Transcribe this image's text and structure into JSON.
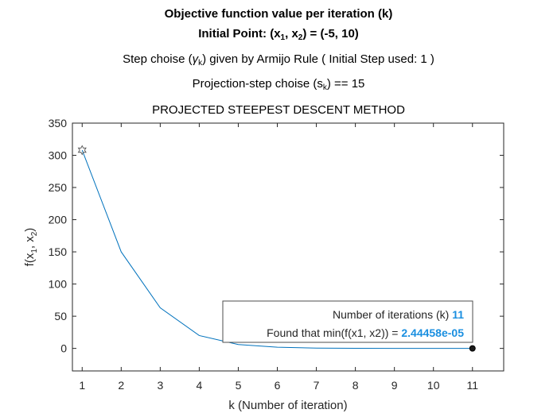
{
  "titles": {
    "line1": "Objective function value per iteration (k)",
    "line2_pre": "Initial Point: (x",
    "line2_sub1": "1",
    "line2_mid": ", x",
    "line2_sub2": "2",
    "line2_post": ") = (-5, 10)",
    "line3_pre": "Step choise (",
    "line3_gamma": "γ",
    "line3_sub": "k",
    "line3_post": ") given by Armijo Rule ( Initial Step used: 1 )",
    "line4_pre": "Projection-step choise (s",
    "line4_sub": "k",
    "line4_post": ") == 15",
    "axes_title": "PROJECTED STEEPEST DESCENT METHOD"
  },
  "chart_data": {
    "type": "line",
    "title": "PROJECTED STEEPEST DESCENT METHOD",
    "xlabel": "k (Number of iteration)",
    "ylabel_pre": "f(x",
    "ylabel_sub1": "1",
    "ylabel_mid": ", x",
    "ylabel_sub2": "2",
    "ylabel_post": ")",
    "xlim": [
      0.75,
      11.8
    ],
    "ylim": [
      -35,
      350
    ],
    "xticks": [
      1,
      2,
      3,
      4,
      5,
      6,
      7,
      8,
      9,
      10,
      11
    ],
    "yticks": [
      0,
      50,
      100,
      150,
      200,
      250,
      300,
      350
    ],
    "grid": false,
    "series": [
      {
        "color": "#0072bd",
        "x": [
          1,
          2,
          3,
          4,
          5,
          6,
          7,
          8,
          9,
          10,
          11
        ],
        "y": [
          308,
          150,
          63,
          20,
          6,
          1.8,
          0.5,
          0.15,
          0.04,
          0.01,
          2.44458e-05
        ]
      }
    ],
    "start_marker": {
      "x": 1,
      "y": 308,
      "shape": "hexagram"
    },
    "end_marker": {
      "x": 11,
      "y": 2.44458e-05,
      "shape": "dot"
    },
    "annotation": {
      "line1_label": "Number of iterations (k) ",
      "line1_value": "11",
      "line2_label": "Found that min(f(x1, x2)) = ",
      "line2_value": "2.44458e-05",
      "value_color": "#1a8fe0"
    }
  }
}
